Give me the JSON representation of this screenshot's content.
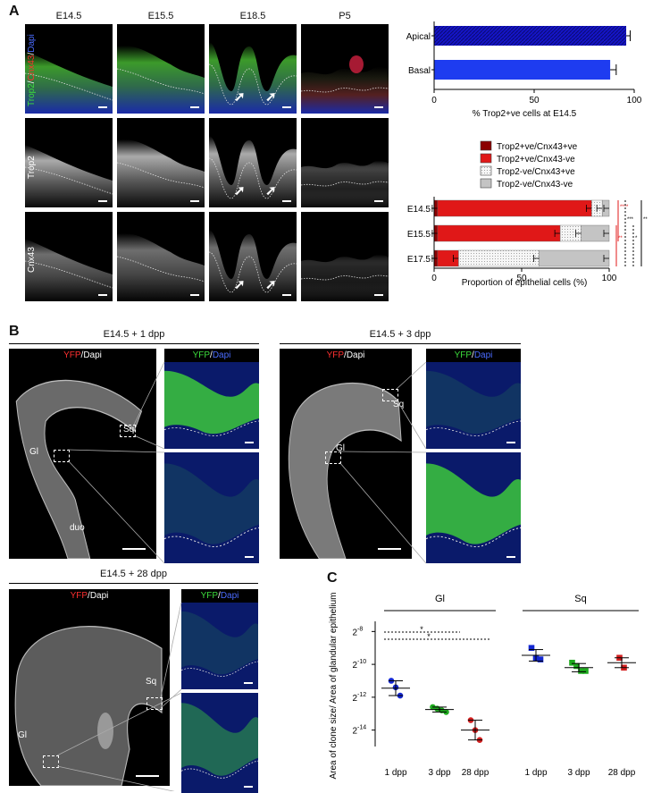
{
  "panelA": {
    "letter": "A",
    "columns": [
      "E14.5",
      "E15.5",
      "E18.5",
      "P5"
    ],
    "rows": [
      {
        "label_parts": [
          {
            "text": "Trop2",
            "color": "#3cdc3c"
          },
          {
            "text": "/",
            "color": "#ffffff"
          },
          {
            "text": "Cnx43",
            "color": "#ff3030"
          },
          {
            "text": "/",
            "color": "#ffffff"
          },
          {
            "text": "Dapi",
            "color": "#4a6bff"
          }
        ]
      },
      {
        "label_parts": [
          {
            "text": "Trop2",
            "color": "#ffffff"
          }
        ]
      },
      {
        "label_parts": [
          {
            "text": "Cnx43",
            "color": "#ffffff"
          }
        ]
      }
    ],
    "arrow_glyph": "➚"
  },
  "panelB": {
    "letter": "B",
    "groups": [
      {
        "title": "E14.5 + 1 dpp",
        "left_header": {
          "a": "YFP",
          "b": "/Dapi"
        },
        "right_header": {
          "a": "YFP",
          "b": "/",
          "c": "Dapi"
        },
        "labels": {
          "sq": "Sq",
          "gl": "Gl",
          "duo": "duo"
        }
      },
      {
        "title": "E14.5 + 3 dpp",
        "left_header": {
          "a": "YFP",
          "b": "/Dapi"
        },
        "right_header": {
          "a": "YFP",
          "b": "/",
          "c": "Dapi"
        },
        "labels": {
          "sq": "Sq",
          "gl": "Gl"
        }
      },
      {
        "title": "E14.5 + 28 dpp",
        "left_header": {
          "a": "YFP",
          "b": "/Dapi"
        },
        "right_header": {
          "a": "YFP",
          "b": "/",
          "c": "Dapi"
        },
        "labels": {
          "sq": "Sq",
          "gl": "Gl"
        }
      }
    ]
  },
  "panelC": {
    "letter": "C"
  },
  "chart_data": [
    {
      "type": "bar",
      "orientation": "horizontal",
      "categories": [
        "Apical",
        "Basal"
      ],
      "values": [
        96,
        88
      ],
      "errors": [
        2,
        3
      ],
      "xlabel": "% Trop2+ve cells at E14.5",
      "xlim": [
        0,
        100
      ],
      "xticks": [
        0,
        50,
        100
      ],
      "colors": [
        "#1414c8",
        "#1e3cf0"
      ]
    },
    {
      "type": "bar",
      "orientation": "horizontal",
      "stacked": true,
      "categories": [
        "E14.5",
        "E15.5",
        "E17.5"
      ],
      "series": [
        {
          "name": "Trop2+ve/Cnx43+ve",
          "values": [
            2,
            2,
            2
          ],
          "color": "#8b0000"
        },
        {
          "name": "Trop2+ve/Cnx43-ve",
          "values": [
            88,
            70,
            12
          ],
          "color": "#e01818"
        },
        {
          "name": "Trop2-ve/Cnx43+ve",
          "values": [
            6,
            12,
            46
          ],
          "color": "#f2f2f2"
        },
        {
          "name": "Trop2-ve/Cnx43-ve",
          "values": [
            4,
            16,
            40
          ],
          "color": "#c4c4c4"
        }
      ],
      "xlabel": "Proportion of epithelial cells (%)",
      "xlim": [
        0,
        100
      ],
      "xticks": [
        0,
        50,
        100
      ],
      "legend_position": "top",
      "significance": [
        "****",
        "***",
        "**",
        "*",
        "**"
      ]
    },
    {
      "type": "scatter",
      "groups": [
        "Gl",
        "Sq"
      ],
      "categories": [
        "1 dpp",
        "3 dpp",
        "28 dpp",
        "1 dpp",
        "3 dpp",
        "28 dpp"
      ],
      "ylabel": "Area of clone size/ Area of glandular epithelium",
      "yscale": "log2",
      "yticks": [
        "2-8",
        "2-10",
        "2-12",
        "2-14"
      ],
      "ylim_log2": [
        -15,
        -7.6
      ],
      "series": [
        {
          "group": "Gl",
          "x": "1 dpp",
          "points": [
            -11.0,
            -11.4,
            -11.9
          ],
          "mean": -11.45,
          "color": "#1428d2",
          "marker": "circle"
        },
        {
          "group": "Gl",
          "x": "3 dpp",
          "points": [
            -12.6,
            -12.7,
            -12.8,
            -12.9
          ],
          "mean": -12.75,
          "color": "#1eaa1e",
          "marker": "circle"
        },
        {
          "group": "Gl",
          "x": "28 dpp",
          "points": [
            -13.4,
            -14.0,
            -14.6
          ],
          "mean": -14.0,
          "color": "#d21e1e",
          "marker": "circle"
        },
        {
          "group": "Sq",
          "x": "1 dpp",
          "points": [
            -9.0,
            -9.6,
            -9.7
          ],
          "mean": -9.45,
          "color": "#1428d2",
          "marker": "square"
        },
        {
          "group": "Sq",
          "x": "3 dpp",
          "points": [
            -9.9,
            -10.1,
            -10.4,
            -10.4
          ],
          "mean": -10.2,
          "color": "#1eaa1e",
          "marker": "square"
        },
        {
          "group": "Sq",
          "x": "28 dpp",
          "points": [
            -9.6,
            -10.2
          ],
          "mean": -9.9,
          "color": "#d21e1e",
          "marker": "square"
        }
      ],
      "significance": [
        "*",
        "*"
      ]
    }
  ]
}
